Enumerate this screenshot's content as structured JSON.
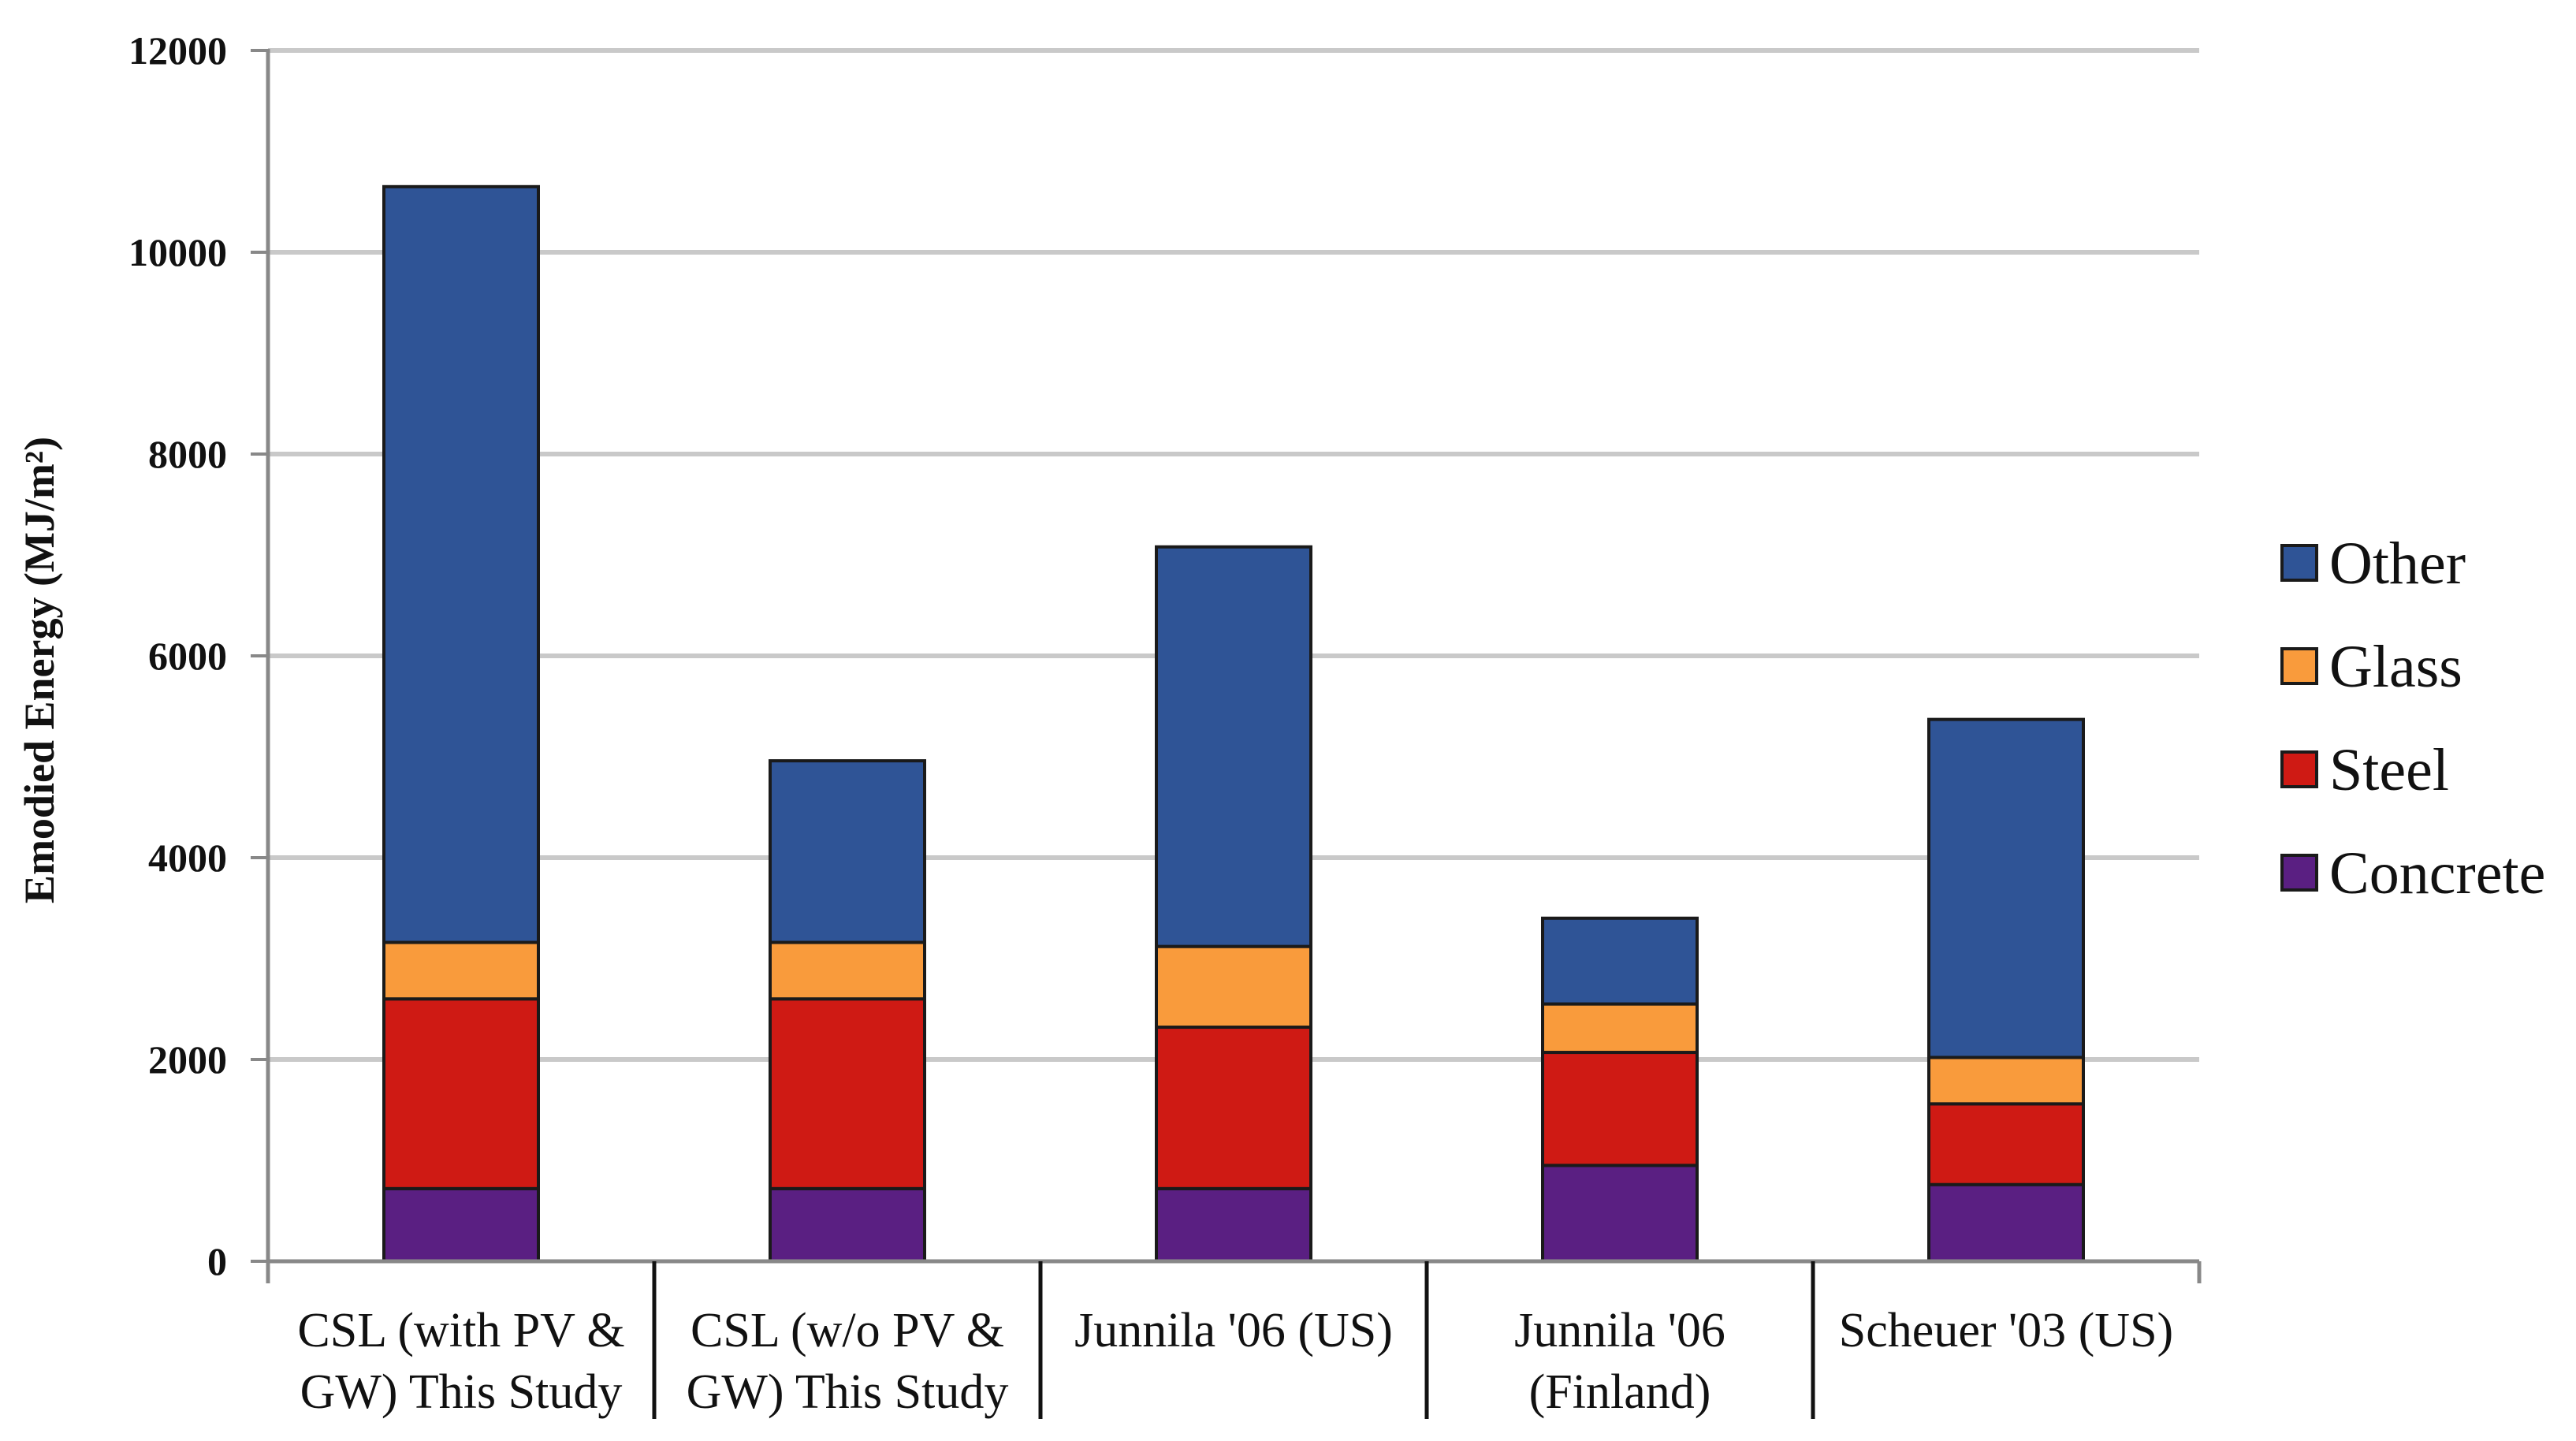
{
  "chart_data": {
    "type": "bar",
    "stacked": true,
    "title": "",
    "xlabel": "",
    "ylabel": "Emodied Energy (MJ/m²)",
    "ylim": [
      0,
      12000
    ],
    "yticks": [
      "0",
      "2000",
      "4000",
      "6000",
      "8000",
      "10000",
      "12000"
    ],
    "grid": true,
    "legend_position": "right",
    "categories": [
      [
        "CSL (with PV &",
        "GW) This Study"
      ],
      [
        "CSL (w/o PV &",
        "GW) This Study"
      ],
      [
        "Junnila '06 (US)"
      ],
      [
        "Junnila '06",
        "(Finland)"
      ],
      [
        "Scheuer '03 (US)"
      ]
    ],
    "series": [
      {
        "name": "Concrete",
        "color": "#5a1f82",
        "values": [
          720,
          720,
          720,
          950,
          760
        ]
      },
      {
        "name": "Steel",
        "color": "#cf1a14",
        "values": [
          1880,
          1880,
          1600,
          1120,
          800
        ]
      },
      {
        "name": "Glass",
        "color": "#f99b3c",
        "values": [
          560,
          560,
          800,
          480,
          460
        ]
      },
      {
        "name": "Other",
        "color": "#2f5496",
        "values": [
          7490,
          1800,
          3960,
          850,
          3350
        ]
      }
    ],
    "legend_order": [
      "Other",
      "Glass",
      "Steel",
      "Concrete"
    ]
  }
}
